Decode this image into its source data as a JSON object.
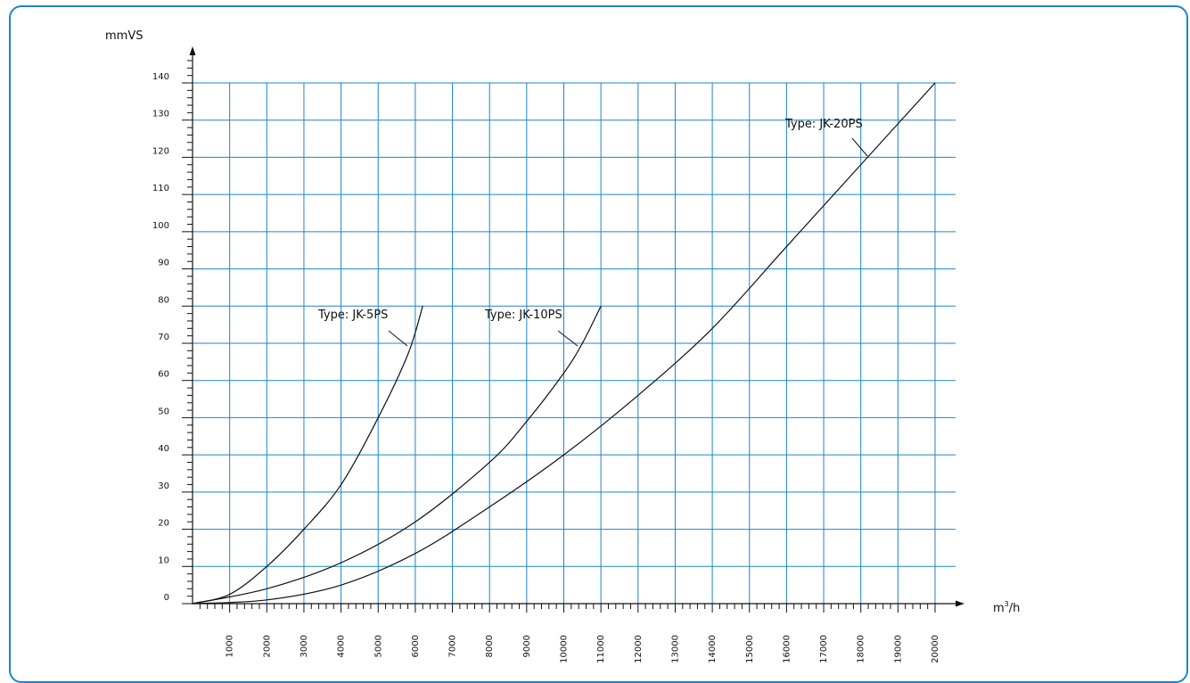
{
  "chart_data": {
    "type": "line",
    "ylabel": "mmVS",
    "xlabel": "m³/h",
    "xlabel_main": "m",
    "xlabel_sup": "3",
    "xlabel_tail": "/h",
    "xlim": [
      0,
      20000
    ],
    "ylim": [
      0,
      140
    ],
    "grid": true,
    "x_ticks": [
      "1000",
      "2000",
      "3000",
      "4000",
      "5000",
      "6000",
      "7000",
      "8000",
      "9000",
      "10000",
      "11000",
      "12000",
      "13000",
      "14000",
      "15000",
      "16000",
      "17000",
      "18000",
      "19000",
      "20000"
    ],
    "y_ticks": [
      "0",
      "10",
      "20",
      "30",
      "40",
      "50",
      "60",
      "70",
      "80",
      "90",
      "100",
      "110",
      "120",
      "130",
      "140"
    ],
    "series": [
      {
        "name": "Type: JK-5PS",
        "x": [
          0,
          1000,
          2000,
          3000,
          4000,
          5000,
          5800,
          6200
        ],
        "y": [
          0,
          2.5,
          10,
          20,
          32,
          50,
          67,
          80
        ]
      },
      {
        "name": "Type: JK-10PS",
        "x": [
          0,
          2000,
          4000,
          6000,
          8000,
          9000,
          10000,
          10500,
          11000
        ],
        "y": [
          0,
          4,
          11,
          22,
          38,
          49,
          62,
          70,
          80
        ]
      },
      {
        "name": "Type: JK-20PS",
        "x": [
          0,
          2000,
          4000,
          6000,
          8000,
          10000,
          12000,
          14000,
          16000,
          18000,
          20000
        ],
        "y": [
          0,
          1,
          5,
          13.5,
          26,
          40,
          56,
          74,
          96,
          118,
          140
        ]
      }
    ],
    "colors": {
      "grid": "#1a86cc",
      "axis": "#111111",
      "curve": "#111111",
      "frame": "#1a86cc"
    }
  }
}
